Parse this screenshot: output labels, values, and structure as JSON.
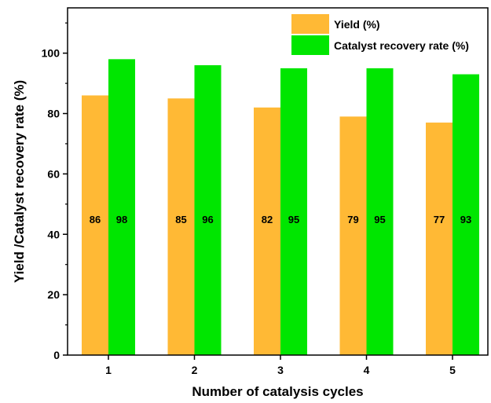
{
  "chart_data": {
    "type": "bar",
    "title": "",
    "xlabel": "Number of catalysis cycles",
    "ylabel": "Yield /Catalyst recovery rate (%)",
    "categories": [
      "1",
      "2",
      "3",
      "4",
      "5"
    ],
    "series": [
      {
        "name": "Yield (%)",
        "values": [
          86,
          85,
          82,
          79,
          77
        ],
        "color": "#FFB935"
      },
      {
        "name": "Catalyst recovery rate (%)",
        "values": [
          98,
          96,
          95,
          95,
          93
        ],
        "color": "#00E600"
      }
    ],
    "data_labels": {
      "yield": [
        "86",
        "85",
        "82",
        "79",
        "77"
      ],
      "recovery": [
        "98",
        "96",
        "95",
        "95",
        "93"
      ],
      "position": "middle-at-45"
    },
    "ylim": [
      0,
      115
    ],
    "yticks": [
      0,
      20,
      40,
      60,
      80,
      100
    ],
    "ytick_labels": [
      "0",
      "20",
      "40",
      "60",
      "80",
      "100"
    ],
    "grid": false,
    "legend_position": "top-right"
  }
}
